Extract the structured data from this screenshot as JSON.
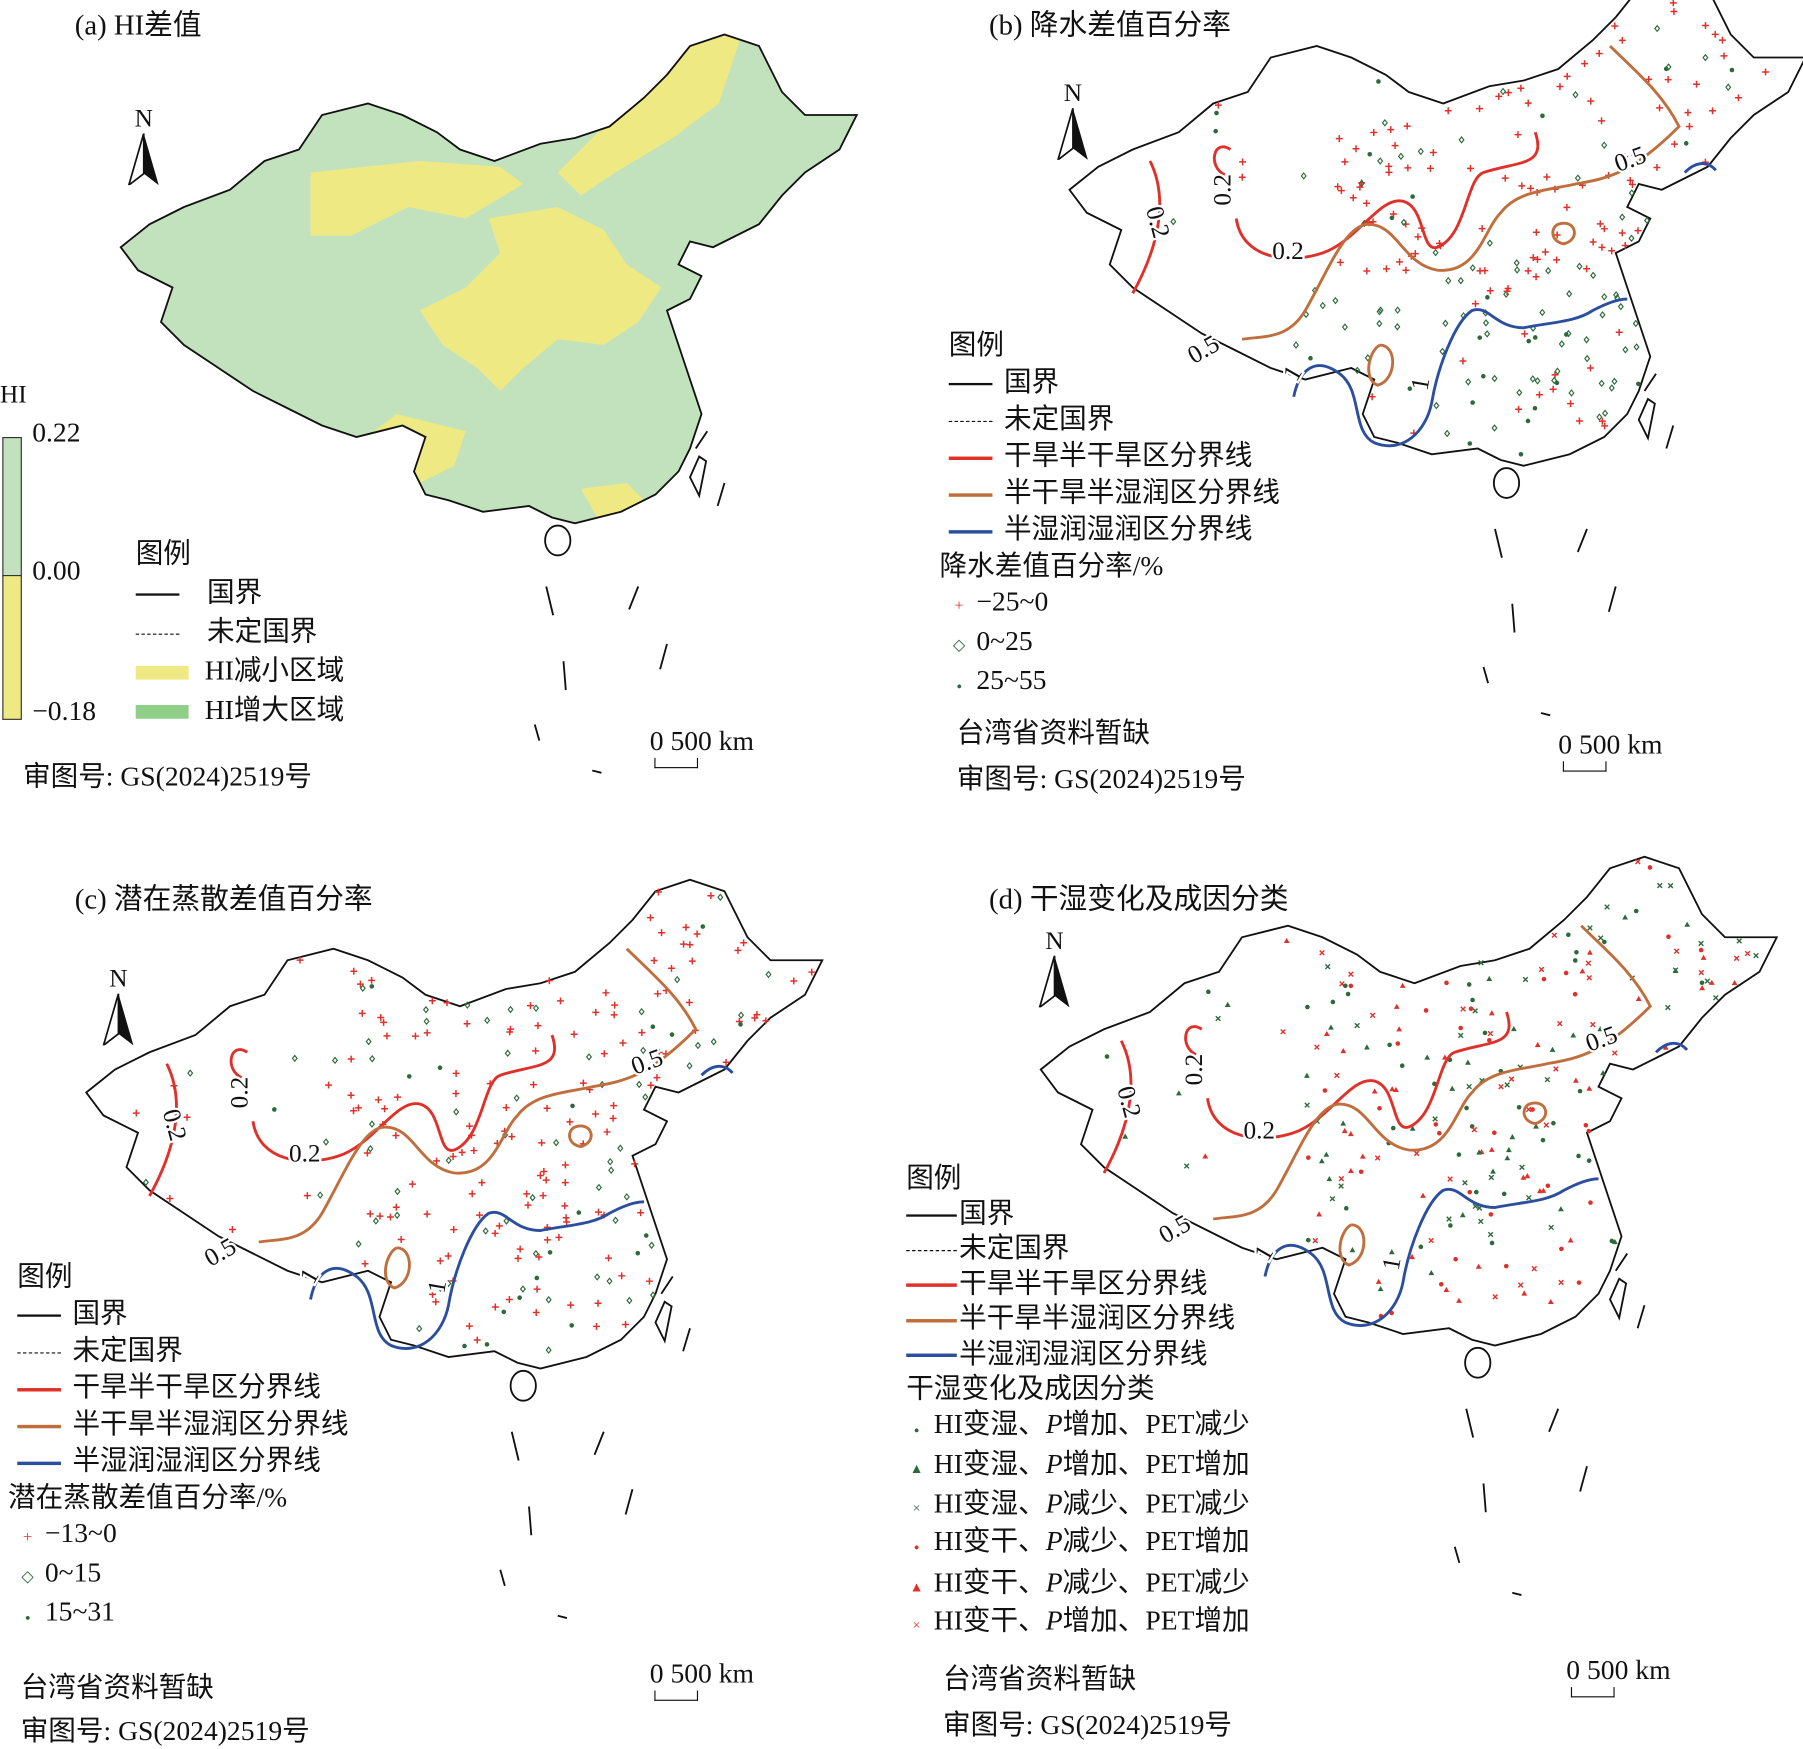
{
  "colors": {
    "hi_increase": "#c2e2bd",
    "hi_decrease": "#efe984",
    "arid_line": "#e0302a",
    "semiarid_line": "#c06e3c",
    "subhumid_line": "#2b4f9e",
    "plus_marker": "#e0302a",
    "diamond_marker": "#2d6a3a",
    "dot_marker": "#2d6a3a"
  },
  "common": {
    "north": "N",
    "scale": "0 500 km",
    "review": "审图号: GS(2024)2519号",
    "legend_title": "图例",
    "border": "国界",
    "undetermined": "未定国界",
    "taiwan_note": "台湾省资料暂缺",
    "arid": "干旱半干旱区分界线",
    "semiarid": "半干旱半湿润区分界线",
    "subhumid": "半湿润湿润区分界线",
    "icons": [
      "north-arrow-icon",
      "scale-bar-icon"
    ]
  },
  "contour_labels": {
    "arid": "0.2",
    "semiarid": "0.5",
    "subhumid": "1"
  },
  "panel_a": {
    "title": "(a) HI差值",
    "colorbar_title": "HI",
    "colorbar_max": "0.22",
    "colorbar_mid": "0.00",
    "colorbar_min": "−0.18",
    "decrease": "HI减小区域",
    "increase": "HI增大区域"
  },
  "panel_b": {
    "title": "(b) 降水差值百分率",
    "class_title": "降水差值百分率/%",
    "classes": [
      "−25~0",
      "0~25",
      "25~55"
    ]
  },
  "panel_c": {
    "title": "(c) 潜在蒸散差值百分率",
    "class_title": "潜在蒸散差值百分率/%",
    "classes": [
      "−13~0",
      "0~15",
      "15~31"
    ]
  },
  "panel_d": {
    "title": "(d) 干湿变化及成因分类",
    "class_title": "干湿变化及成因分类",
    "classes": [
      {
        "a": "HI变湿、",
        "p": "P",
        "b": "增加、PET减少",
        "marker": "dot",
        "color": "#2d6a3a"
      },
      {
        "a": "HI变湿、",
        "p": "P",
        "b": "增加、PET增加",
        "marker": "triangle",
        "color": "#2d6a3a"
      },
      {
        "a": "HI变湿、",
        "p": "P",
        "b": "减少、PET减少",
        "marker": "cross",
        "color": "#2d6a3a"
      },
      {
        "a": "HI变干、",
        "p": "P",
        "b": "减少、PET增加",
        "marker": "dot",
        "color": "#e0302a"
      },
      {
        "a": "HI变干、",
        "p": "P",
        "b": "减少、PET减少",
        "marker": "triangle",
        "color": "#e0302a"
      },
      {
        "a": "HI变干、",
        "p": "P",
        "b": "增加、PET增加",
        "marker": "cross",
        "color": "#e0302a"
      }
    ]
  }
}
